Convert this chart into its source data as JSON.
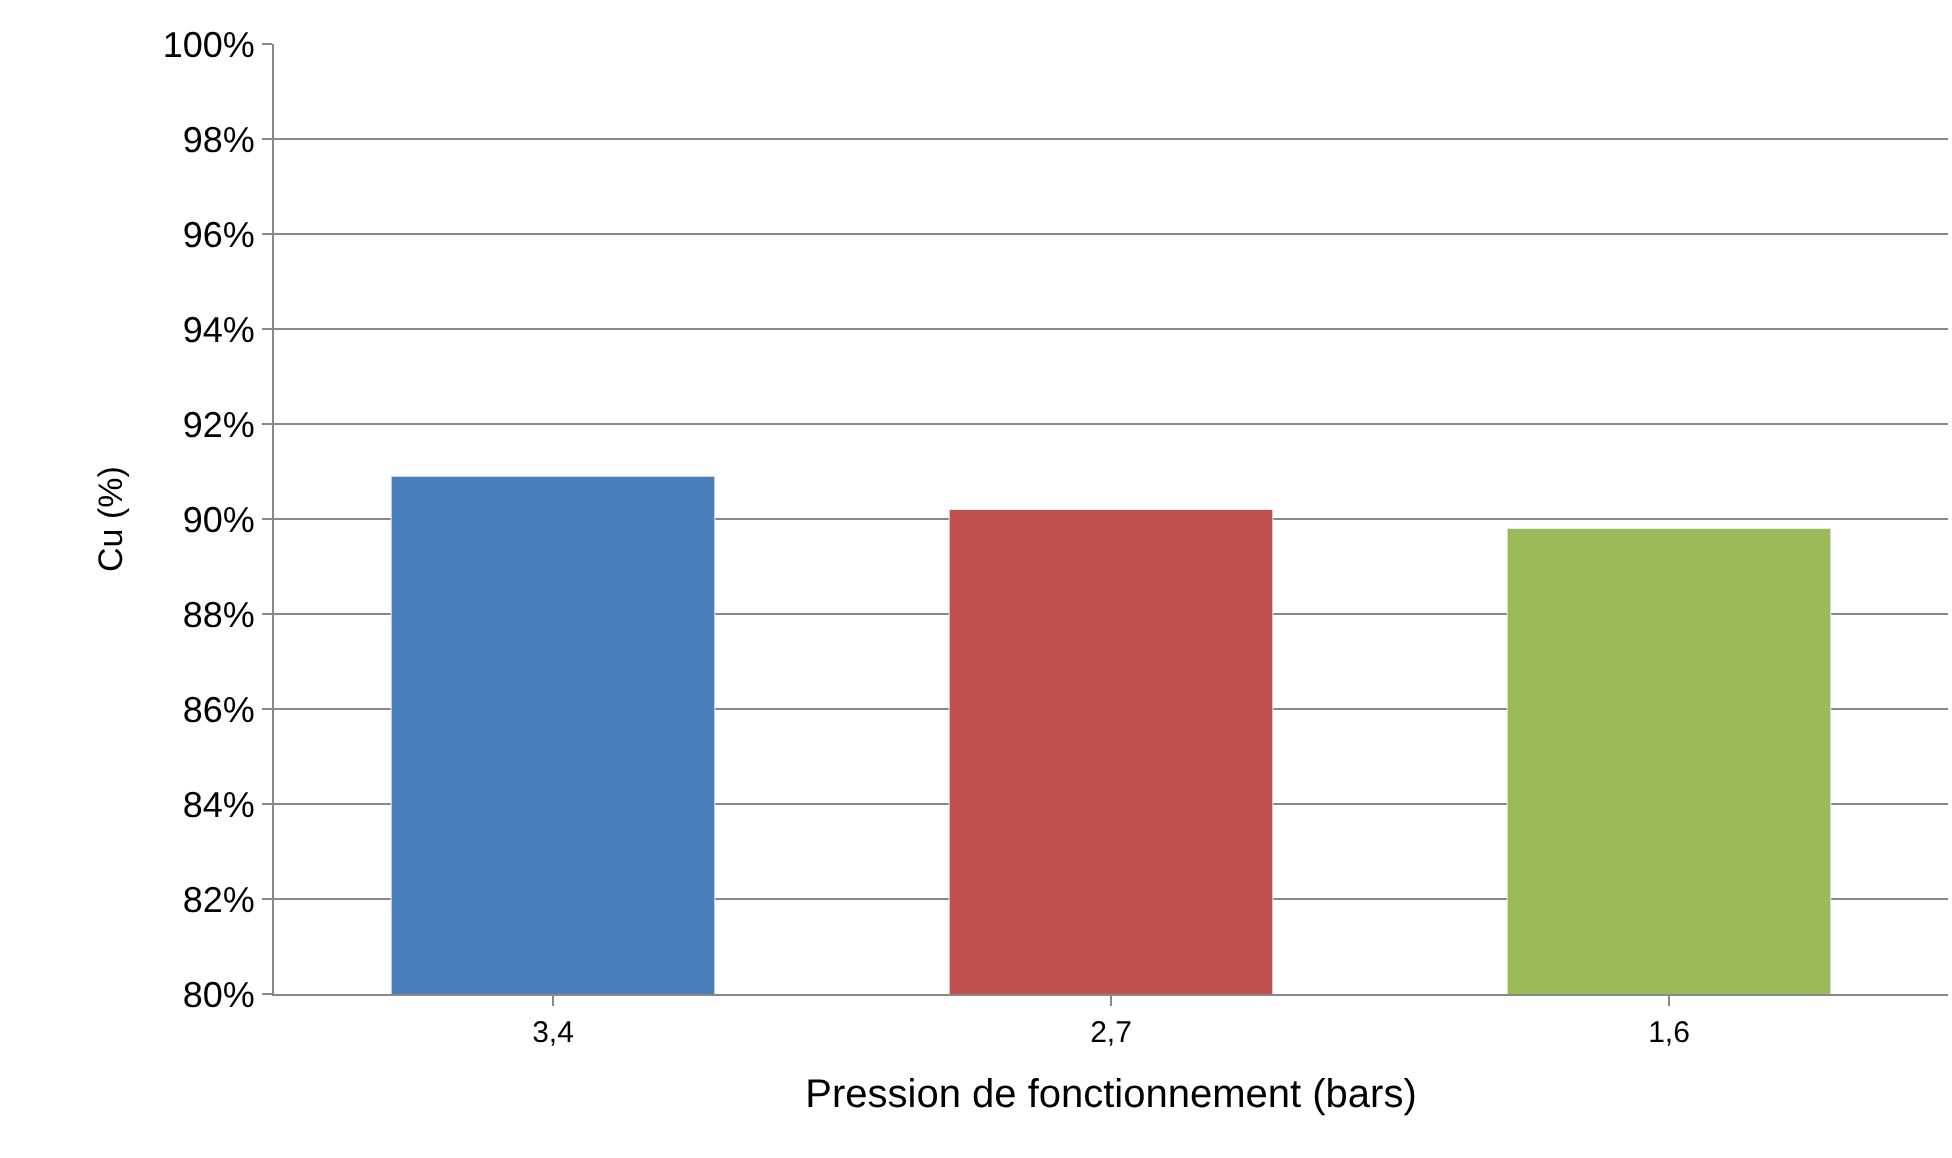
{
  "chart_data": {
    "type": "bar",
    "xlabel": "Pression de fonctionnement (bars)",
    "ylabel": "Cu (%)",
    "categories": [
      "3,4",
      "2,7",
      "1,6"
    ],
    "values": [
      90.9,
      90.2,
      89.8
    ],
    "colors": [
      "#4a7ebb",
      "#c0504d",
      "#9bbb59"
    ],
    "ylim": [
      80,
      100
    ],
    "yticks": [
      {
        "value": 80,
        "label": "80%"
      },
      {
        "value": 82,
        "label": "82%"
      },
      {
        "value": 84,
        "label": "84%"
      },
      {
        "value": 86,
        "label": "86%"
      },
      {
        "value": 88,
        "label": "88%"
      },
      {
        "value": 90,
        "label": "90%"
      },
      {
        "value": 92,
        "label": "92%"
      },
      {
        "value": 94,
        "label": "94%"
      },
      {
        "value": 96,
        "label": "96%"
      },
      {
        "value": 98,
        "label": "98%"
      },
      {
        "value": 100,
        "label": "100%"
      }
    ],
    "grid": "y"
  }
}
